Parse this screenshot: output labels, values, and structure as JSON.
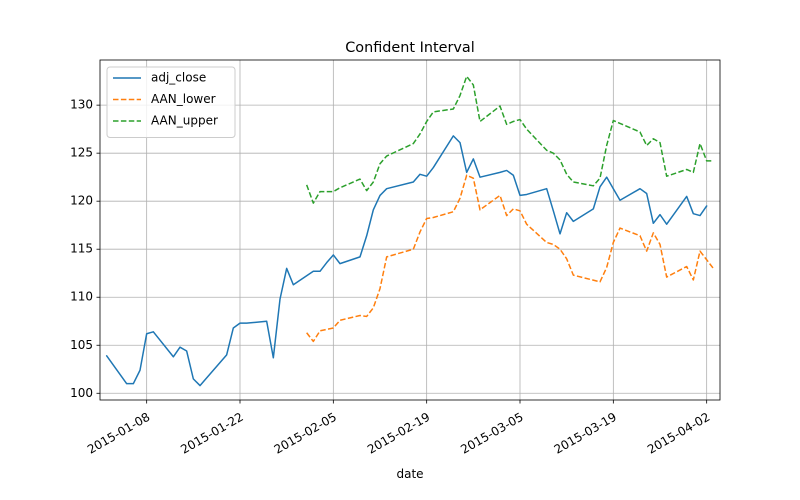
{
  "chart_data": {
    "type": "line",
    "title": "Confident Interval",
    "xlabel": "date",
    "ylabel": "",
    "xlim": [
      "2015-01-01",
      "2015-04-04"
    ],
    "ylim": [
      99.3,
      134.7
    ],
    "x_ticks": [
      "2015-01-08",
      "2015-01-22",
      "2015-02-05",
      "2015-02-19",
      "2015-03-05",
      "2015-03-19",
      "2015-04-02"
    ],
    "y_ticks": [
      100,
      105,
      110,
      115,
      120,
      125,
      130
    ],
    "grid": true,
    "legend_position": "upper-left",
    "series": [
      {
        "name": "adj_close",
        "color": "#1f77b4",
        "style": "solid",
        "points": [
          [
            "2015-01-02",
            103.9
          ],
          [
            "2015-01-05",
            101.0
          ],
          [
            "2015-01-06",
            101.0
          ],
          [
            "2015-01-07",
            102.4
          ],
          [
            "2015-01-08",
            106.2
          ],
          [
            "2015-01-09",
            106.4
          ],
          [
            "2015-01-12",
            103.8
          ],
          [
            "2015-01-13",
            104.8
          ],
          [
            "2015-01-14",
            104.4
          ],
          [
            "2015-01-15",
            101.5
          ],
          [
            "2015-01-16",
            100.8
          ],
          [
            "2015-01-20",
            104.0
          ],
          [
            "2015-01-21",
            106.8
          ],
          [
            "2015-01-22",
            107.3
          ],
          [
            "2015-01-23",
            107.3
          ],
          [
            "2015-01-26",
            107.5
          ],
          [
            "2015-01-27",
            103.7
          ],
          [
            "2015-01-28",
            109.8
          ],
          [
            "2015-01-29",
            113.0
          ],
          [
            "2015-01-30",
            111.3
          ],
          [
            "2015-02-02",
            112.7
          ],
          [
            "2015-02-03",
            112.7
          ],
          [
            "2015-02-04",
            113.6
          ],
          [
            "2015-02-05",
            114.4
          ],
          [
            "2015-02-06",
            113.5
          ],
          [
            "2015-02-09",
            114.2
          ],
          [
            "2015-02-10",
            116.4
          ],
          [
            "2015-02-11",
            119.1
          ],
          [
            "2015-02-12",
            120.6
          ],
          [
            "2015-02-13",
            121.3
          ],
          [
            "2015-02-17",
            122.0
          ],
          [
            "2015-02-18",
            122.8
          ],
          [
            "2015-02-19",
            122.6
          ],
          [
            "2015-02-20",
            123.5
          ],
          [
            "2015-02-23",
            126.8
          ],
          [
            "2015-02-24",
            126.1
          ],
          [
            "2015-02-25",
            123.0
          ],
          [
            "2015-02-26",
            124.4
          ],
          [
            "2015-02-27",
            122.5
          ],
          [
            "2015-03-02",
            123.0
          ],
          [
            "2015-03-03",
            123.2
          ],
          [
            "2015-03-04",
            122.7
          ],
          [
            "2015-03-05",
            120.6
          ],
          [
            "2015-03-06",
            120.7
          ],
          [
            "2015-03-09",
            121.3
          ],
          [
            "2015-03-10",
            119.0
          ],
          [
            "2015-03-11",
            116.6
          ],
          [
            "2015-03-12",
            118.8
          ],
          [
            "2015-03-13",
            117.9
          ],
          [
            "2015-03-16",
            119.2
          ],
          [
            "2015-03-17",
            121.5
          ],
          [
            "2015-03-18",
            122.5
          ],
          [
            "2015-03-19",
            121.3
          ],
          [
            "2015-03-20",
            120.1
          ],
          [
            "2015-03-23",
            121.3
          ],
          [
            "2015-03-24",
            120.8
          ],
          [
            "2015-03-25",
            117.7
          ],
          [
            "2015-03-26",
            118.6
          ],
          [
            "2015-03-27",
            117.6
          ],
          [
            "2015-03-30",
            120.5
          ],
          [
            "2015-03-31",
            118.7
          ],
          [
            "2015-04-01",
            118.5
          ],
          [
            "2015-04-02",
            119.5
          ]
        ]
      },
      {
        "name": "AAN_lower",
        "color": "#ff7f0e",
        "style": "dashed",
        "points": [
          [
            "2015-02-01",
            106.3
          ],
          [
            "2015-02-02",
            105.4
          ],
          [
            "2015-02-03",
            106.5
          ],
          [
            "2015-02-05",
            106.8
          ],
          [
            "2015-02-06",
            107.6
          ],
          [
            "2015-02-09",
            108.1
          ],
          [
            "2015-02-10",
            108.0
          ],
          [
            "2015-02-11",
            108.9
          ],
          [
            "2015-02-12",
            110.9
          ],
          [
            "2015-02-13",
            114.2
          ],
          [
            "2015-02-17",
            115.0
          ],
          [
            "2015-02-18",
            116.8
          ],
          [
            "2015-02-19",
            118.2
          ],
          [
            "2015-02-20",
            118.3
          ],
          [
            "2015-02-23",
            118.9
          ],
          [
            "2015-02-24",
            120.3
          ],
          [
            "2015-02-25",
            122.7
          ],
          [
            "2015-02-26",
            122.4
          ],
          [
            "2015-02-27",
            119.1
          ],
          [
            "2015-03-02",
            120.6
          ],
          [
            "2015-03-03",
            118.5
          ],
          [
            "2015-03-04",
            119.2
          ],
          [
            "2015-03-05",
            119.0
          ],
          [
            "2015-03-06",
            117.6
          ],
          [
            "2015-03-09",
            115.7
          ],
          [
            "2015-03-10",
            115.5
          ],
          [
            "2015-03-11",
            115.0
          ],
          [
            "2015-03-12",
            114.0
          ],
          [
            "2015-03-13",
            112.3
          ],
          [
            "2015-03-17",
            111.6
          ],
          [
            "2015-03-18",
            113.1
          ],
          [
            "2015-03-19",
            115.7
          ],
          [
            "2015-03-20",
            117.2
          ],
          [
            "2015-03-23",
            116.4
          ],
          [
            "2015-03-24",
            114.8
          ],
          [
            "2015-03-25",
            116.7
          ],
          [
            "2015-03-26",
            115.5
          ],
          [
            "2015-03-27",
            112.1
          ],
          [
            "2015-03-30",
            113.2
          ],
          [
            "2015-03-31",
            111.8
          ],
          [
            "2015-04-01",
            114.8
          ],
          [
            "2015-04-03",
            113.0
          ]
        ]
      },
      {
        "name": "AAN_upper",
        "color": "#2ca02c",
        "style": "dashed",
        "points": [
          [
            "2015-02-01",
            121.7
          ],
          [
            "2015-02-02",
            119.8
          ],
          [
            "2015-02-03",
            121.0
          ],
          [
            "2015-02-05",
            121.0
          ],
          [
            "2015-02-06",
            121.4
          ],
          [
            "2015-02-09",
            122.3
          ],
          [
            "2015-02-10",
            121.1
          ],
          [
            "2015-02-11",
            122.0
          ],
          [
            "2015-02-12",
            123.9
          ],
          [
            "2015-02-13",
            124.7
          ],
          [
            "2015-02-17",
            126.0
          ],
          [
            "2015-02-18",
            127.0
          ],
          [
            "2015-02-19",
            128.3
          ],
          [
            "2015-02-20",
            129.3
          ],
          [
            "2015-02-23",
            129.6
          ],
          [
            "2015-02-24",
            131.0
          ],
          [
            "2015-02-25",
            133.0
          ],
          [
            "2015-02-26",
            132.1
          ],
          [
            "2015-02-27",
            128.3
          ],
          [
            "2015-03-02",
            129.9
          ],
          [
            "2015-03-03",
            128.0
          ],
          [
            "2015-03-04",
            128.3
          ],
          [
            "2015-03-05",
            128.5
          ],
          [
            "2015-03-06",
            127.5
          ],
          [
            "2015-03-09",
            125.3
          ],
          [
            "2015-03-10",
            125.0
          ],
          [
            "2015-03-11",
            124.3
          ],
          [
            "2015-03-12",
            122.8
          ],
          [
            "2015-03-13",
            122.0
          ],
          [
            "2015-03-16",
            121.6
          ],
          [
            "2015-03-17",
            122.4
          ],
          [
            "2015-03-18",
            125.8
          ],
          [
            "2015-03-19",
            128.4
          ],
          [
            "2015-03-20",
            128.1
          ],
          [
            "2015-03-23",
            127.2
          ],
          [
            "2015-03-24",
            125.8
          ],
          [
            "2015-03-25",
            126.5
          ],
          [
            "2015-03-26",
            126.1
          ],
          [
            "2015-03-27",
            122.6
          ],
          [
            "2015-03-30",
            123.3
          ],
          [
            "2015-03-31",
            123.0
          ],
          [
            "2015-04-01",
            126.0
          ],
          [
            "2015-04-02",
            124.2
          ],
          [
            "2015-04-03",
            124.2
          ]
        ]
      }
    ]
  }
}
